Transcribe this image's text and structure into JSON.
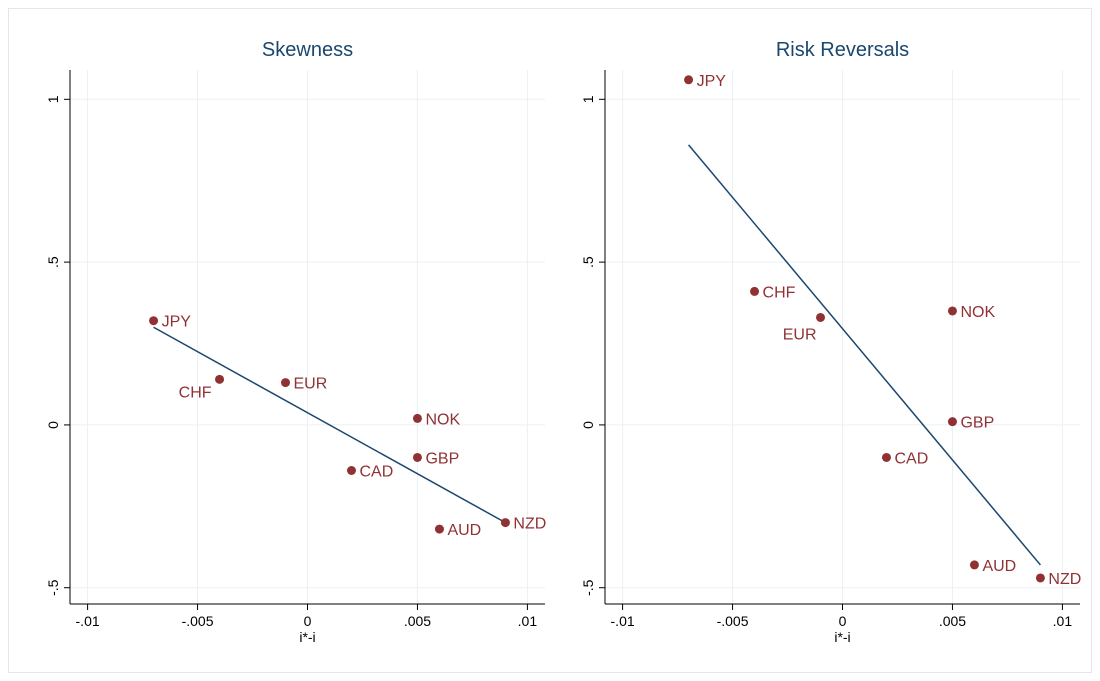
{
  "chart_data": [
    {
      "type": "scatter",
      "title": "Skewness",
      "x_label": "i*-i",
      "xlim": [
        -0.0108,
        0.0108
      ],
      "ylim": [
        -0.55,
        1.09
      ],
      "xticks": [
        {
          "value": -0.01,
          "label": "-.01"
        },
        {
          "value": -0.005,
          "label": "-.005"
        },
        0,
        {
          "value": 0.005,
          "label": ".005"
        },
        {
          "value": 0.01,
          "label": ".01"
        }
      ],
      "yticks": [
        {
          "value": -0.5,
          "label": "-.5"
        },
        0,
        {
          "value": 0.5,
          "label": ".5"
        },
        1
      ],
      "grid": true,
      "points": {
        "color": "#903234",
        "labels": [
          "JPY",
          "CHF",
          "EUR",
          "NOK",
          "GBP",
          "CAD",
          "AUD",
          "NZD"
        ],
        "x": [
          -0.007,
          -0.004,
          -0.001,
          0.005,
          0.005,
          0.002,
          0.006,
          0.009
        ],
        "values": [
          0.32,
          0.14,
          0.13,
          0.02,
          -0.1,
          -0.14,
          -0.32,
          -0.3
        ]
      },
      "fit_line": {
        "color": "#1a476f",
        "x": [
          -0.007,
          0.009
        ],
        "values": [
          0.3,
          -0.3
        ]
      }
    },
    {
      "type": "scatter",
      "title": "Risk Reversals",
      "x_label": "i*-i",
      "xlim": [
        -0.0108,
        0.0108
      ],
      "ylim": [
        -0.55,
        1.09
      ],
      "xticks": [
        {
          "value": -0.01,
          "label": "-.01"
        },
        {
          "value": -0.005,
          "label": "-.005"
        },
        0,
        {
          "value": 0.005,
          "label": ".005"
        },
        {
          "value": 0.01,
          "label": ".01"
        }
      ],
      "yticks": [
        {
          "value": -0.5,
          "label": "-.5"
        },
        0,
        {
          "value": 0.5,
          "label": ".5"
        },
        1
      ],
      "grid": true,
      "points": {
        "color": "#903234",
        "labels": [
          "JPY",
          "CHF",
          "EUR",
          "NOK",
          "GBP",
          "CAD",
          "AUD",
          "NZD"
        ],
        "x": [
          -0.007,
          -0.004,
          -0.001,
          0.005,
          0.005,
          0.002,
          0.006,
          0.009
        ],
        "values": [
          1.06,
          0.41,
          0.33,
          0.35,
          0.01,
          -0.1,
          -0.43,
          -0.47
        ]
      },
      "fit_line": {
        "color": "#1a476f",
        "x": [
          -0.007,
          0.009
        ],
        "values": [
          0.86,
          -0.43
        ]
      }
    }
  ]
}
